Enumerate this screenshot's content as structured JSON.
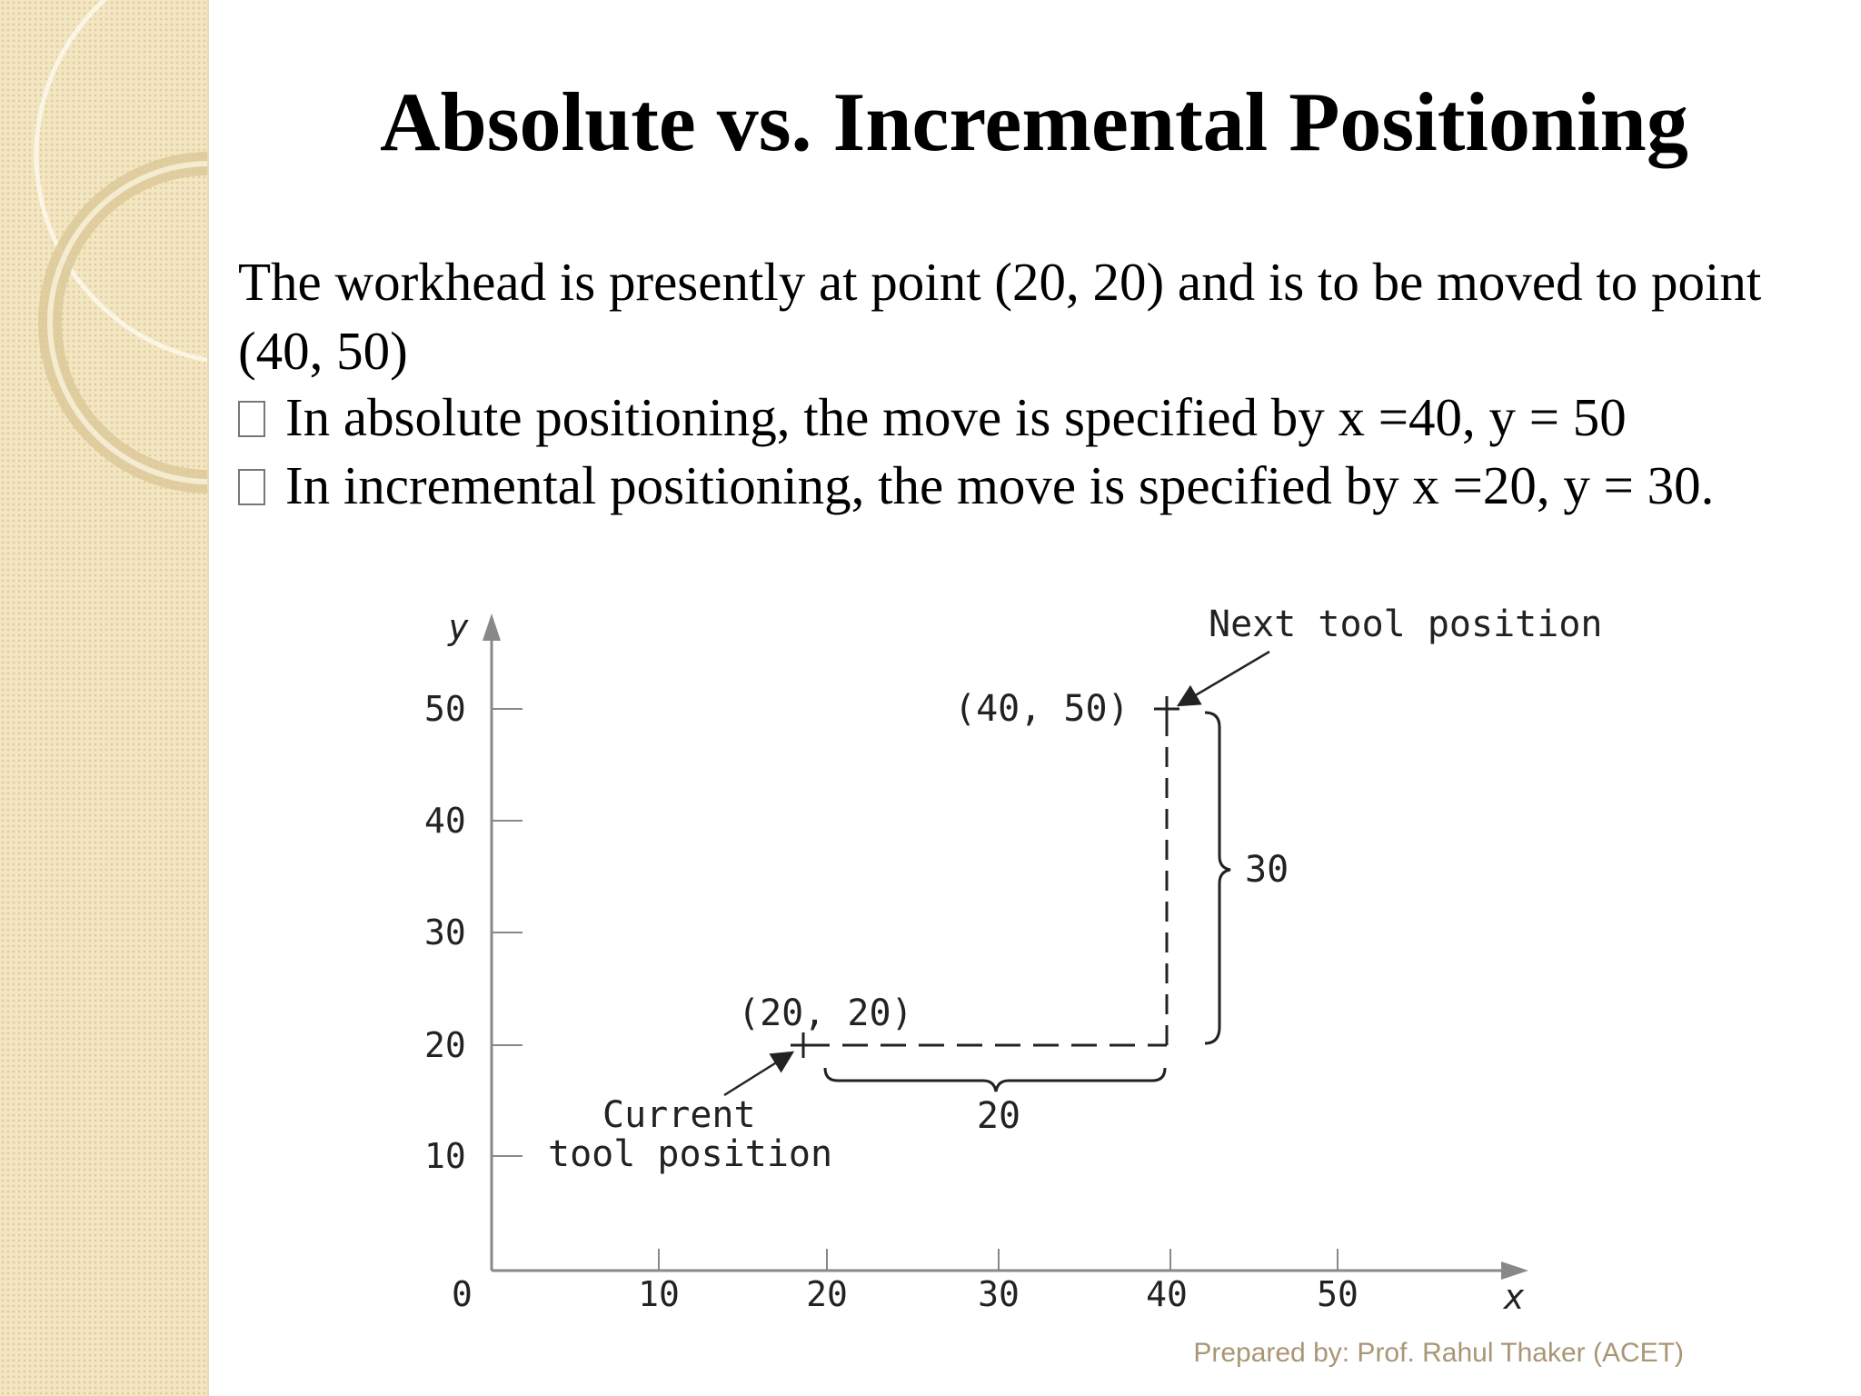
{
  "slide": {
    "title": "Absolute vs. Incremental Positioning",
    "intro": "The workhead is presently at point (20, 20) and is to be moved to point (40, 50)",
    "bullets": [
      "In absolute positioning, the move is specified by x =40, y = 50",
      "In incremental positioning, the move is specified by x =20, y = 30."
    ],
    "footer": "Prepared by: Prof. Rahul Thaker (ACET)"
  },
  "diagram": {
    "y_axis_label": "y",
    "x_axis_label": "x",
    "origin_label": "0",
    "x_ticks": [
      "10",
      "20",
      "30",
      "40",
      "50"
    ],
    "y_ticks": [
      "10",
      "20",
      "30",
      "40",
      "50"
    ],
    "current_point": {
      "x": 20,
      "y": 20,
      "label": "(20, 20)",
      "caption_line1": "Current",
      "caption_line2": "tool position"
    },
    "next_point": {
      "x": 40,
      "y": 50,
      "label": "(40, 50)",
      "caption": "Next tool position"
    },
    "dx_label": "20",
    "dy_label": "30"
  }
}
